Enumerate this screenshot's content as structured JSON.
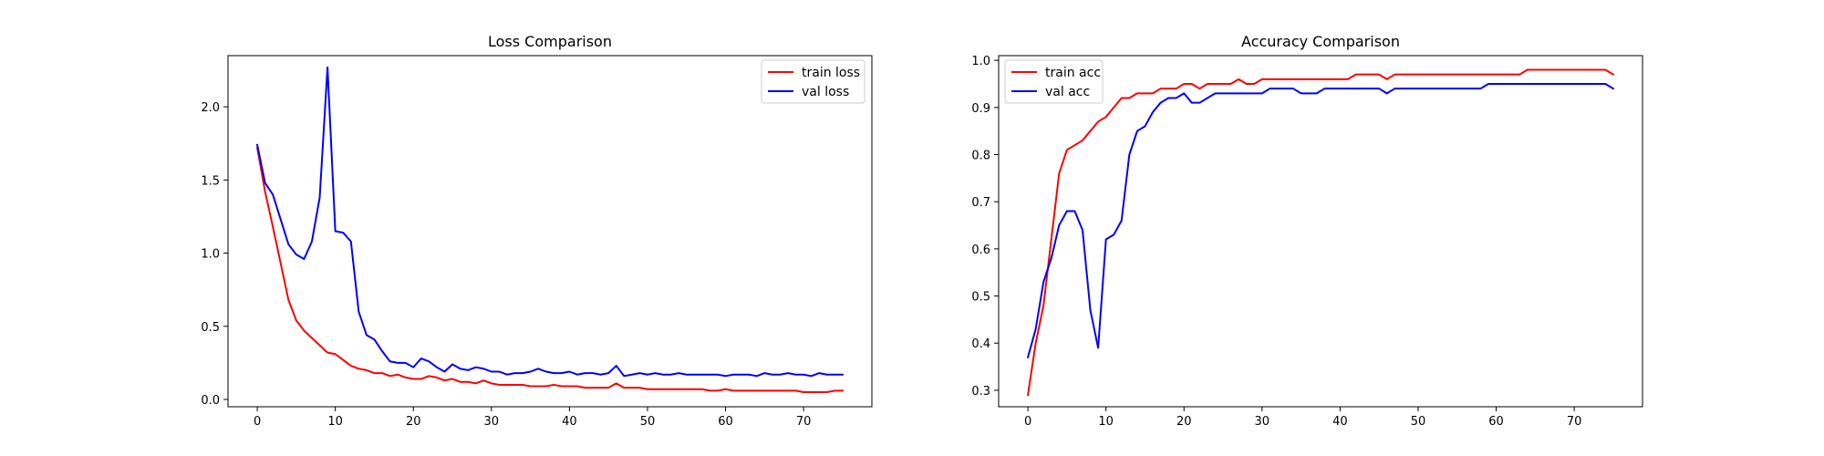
{
  "chart_data": [
    {
      "type": "line",
      "title": "Loss Comparison",
      "xlabel": "",
      "ylabel": "",
      "xlim": [
        -3.75,
        78.75
      ],
      "ylim": [
        -0.05,
        2.35
      ],
      "xticks": [
        0,
        10,
        20,
        30,
        40,
        50,
        60,
        70
      ],
      "yticks": [
        0.0,
        0.5,
        1.0,
        1.5,
        2.0
      ],
      "grid": false,
      "legend_position": "top-right",
      "x": [
        0,
        1,
        2,
        3,
        4,
        5,
        6,
        7,
        8,
        9,
        10,
        11,
        12,
        13,
        14,
        15,
        16,
        17,
        18,
        19,
        20,
        21,
        22,
        23,
        24,
        25,
        26,
        27,
        28,
        29,
        30,
        31,
        32,
        33,
        34,
        35,
        36,
        37,
        38,
        39,
        40,
        41,
        42,
        43,
        44,
        45,
        46,
        47,
        48,
        49,
        50,
        51,
        52,
        53,
        54,
        55,
        56,
        57,
        58,
        59,
        60,
        61,
        62,
        63,
        64,
        65,
        66,
        67,
        68,
        69,
        70,
        71,
        72,
        73,
        74,
        75
      ],
      "series": [
        {
          "name": "train loss",
          "color": "#ff0000",
          "values": [
            1.72,
            1.42,
            1.18,
            0.93,
            0.68,
            0.54,
            0.47,
            0.42,
            0.37,
            0.32,
            0.31,
            0.27,
            0.23,
            0.21,
            0.2,
            0.18,
            0.18,
            0.16,
            0.17,
            0.15,
            0.14,
            0.14,
            0.16,
            0.15,
            0.13,
            0.14,
            0.12,
            0.12,
            0.11,
            0.13,
            0.11,
            0.1,
            0.1,
            0.1,
            0.1,
            0.09,
            0.09,
            0.09,
            0.1,
            0.09,
            0.09,
            0.09,
            0.08,
            0.08,
            0.08,
            0.08,
            0.11,
            0.08,
            0.08,
            0.08,
            0.07,
            0.07,
            0.07,
            0.07,
            0.07,
            0.07,
            0.07,
            0.07,
            0.06,
            0.06,
            0.07,
            0.06,
            0.06,
            0.06,
            0.06,
            0.06,
            0.06,
            0.06,
            0.06,
            0.06,
            0.05,
            0.05,
            0.05,
            0.05,
            0.06,
            0.06
          ]
        },
        {
          "name": "val loss",
          "color": "#0000ff",
          "values": [
            1.74,
            1.48,
            1.4,
            1.23,
            1.06,
            0.99,
            0.96,
            1.08,
            1.38,
            2.27,
            1.15,
            1.14,
            1.08,
            0.6,
            0.44,
            0.41,
            0.33,
            0.26,
            0.25,
            0.25,
            0.22,
            0.28,
            0.26,
            0.22,
            0.19,
            0.24,
            0.21,
            0.2,
            0.22,
            0.21,
            0.19,
            0.19,
            0.17,
            0.18,
            0.18,
            0.19,
            0.21,
            0.19,
            0.18,
            0.18,
            0.19,
            0.17,
            0.18,
            0.18,
            0.17,
            0.18,
            0.23,
            0.16,
            0.17,
            0.18,
            0.17,
            0.18,
            0.17,
            0.17,
            0.18,
            0.17,
            0.17,
            0.17,
            0.17,
            0.17,
            0.16,
            0.17,
            0.17,
            0.17,
            0.16,
            0.18,
            0.17,
            0.17,
            0.18,
            0.17,
            0.17,
            0.16,
            0.18,
            0.17,
            0.17,
            0.17
          ]
        }
      ]
    },
    {
      "type": "line",
      "title": "Accuracy Comparison",
      "xlabel": "",
      "ylabel": "",
      "xlim": [
        -3.75,
        78.75
      ],
      "ylim": [
        0.265,
        1.01
      ],
      "xticks": [
        0,
        10,
        20,
        30,
        40,
        50,
        60,
        70
      ],
      "yticks": [
        0.3,
        0.4,
        0.5,
        0.6,
        0.7,
        0.8,
        0.9,
        1.0
      ],
      "grid": false,
      "legend_position": "top-left",
      "x": [
        0,
        1,
        2,
        3,
        4,
        5,
        6,
        7,
        8,
        9,
        10,
        11,
        12,
        13,
        14,
        15,
        16,
        17,
        18,
        19,
        20,
        21,
        22,
        23,
        24,
        25,
        26,
        27,
        28,
        29,
        30,
        31,
        32,
        33,
        34,
        35,
        36,
        37,
        38,
        39,
        40,
        41,
        42,
        43,
        44,
        45,
        46,
        47,
        48,
        49,
        50,
        51,
        52,
        53,
        54,
        55,
        56,
        57,
        58,
        59,
        60,
        61,
        62,
        63,
        64,
        65,
        66,
        67,
        68,
        69,
        70,
        71,
        72,
        73,
        74,
        75
      ],
      "series": [
        {
          "name": "train acc",
          "color": "#ff0000",
          "values": [
            0.29,
            0.4,
            0.48,
            0.62,
            0.76,
            0.81,
            0.82,
            0.83,
            0.85,
            0.87,
            0.88,
            0.9,
            0.92,
            0.92,
            0.93,
            0.93,
            0.93,
            0.94,
            0.94,
            0.94,
            0.95,
            0.95,
            0.94,
            0.95,
            0.95,
            0.95,
            0.95,
            0.96,
            0.95,
            0.95,
            0.96,
            0.96,
            0.96,
            0.96,
            0.96,
            0.96,
            0.96,
            0.96,
            0.96,
            0.96,
            0.96,
            0.96,
            0.97,
            0.97,
            0.97,
            0.97,
            0.96,
            0.97,
            0.97,
            0.97,
            0.97,
            0.97,
            0.97,
            0.97,
            0.97,
            0.97,
            0.97,
            0.97,
            0.97,
            0.97,
            0.97,
            0.97,
            0.97,
            0.97,
            0.98,
            0.98,
            0.98,
            0.98,
            0.98,
            0.98,
            0.98,
            0.98,
            0.98,
            0.98,
            0.98,
            0.97
          ]
        },
        {
          "name": "val acc",
          "color": "#0000ff",
          "values": [
            0.37,
            0.43,
            0.53,
            0.58,
            0.65,
            0.68,
            0.68,
            0.64,
            0.47,
            0.39,
            0.62,
            0.63,
            0.66,
            0.8,
            0.85,
            0.86,
            0.89,
            0.91,
            0.92,
            0.92,
            0.93,
            0.91,
            0.91,
            0.92,
            0.93,
            0.93,
            0.93,
            0.93,
            0.93,
            0.93,
            0.93,
            0.94,
            0.94,
            0.94,
            0.94,
            0.93,
            0.93,
            0.93,
            0.94,
            0.94,
            0.94,
            0.94,
            0.94,
            0.94,
            0.94,
            0.94,
            0.93,
            0.94,
            0.94,
            0.94,
            0.94,
            0.94,
            0.94,
            0.94,
            0.94,
            0.94,
            0.94,
            0.94,
            0.94,
            0.95,
            0.95,
            0.95,
            0.95,
            0.95,
            0.95,
            0.95,
            0.95,
            0.95,
            0.95,
            0.95,
            0.95,
            0.95,
            0.95,
            0.95,
            0.95,
            0.94
          ]
        }
      ]
    }
  ]
}
